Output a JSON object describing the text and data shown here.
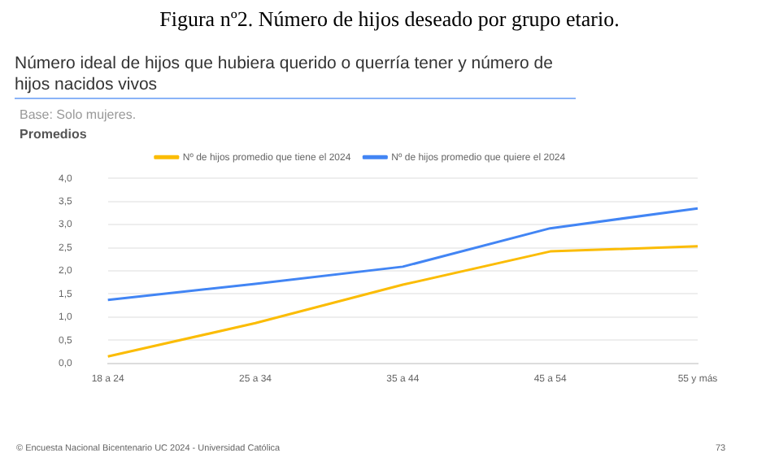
{
  "chart_data": {
    "type": "line",
    "title": "Figura nº2. Número de hijos deseado por grupo etario.",
    "subtitle": "Número ideal de hijos que hubiera querido o querría tener y número de hijos nacidos vivos",
    "ylabel": "Promedios",
    "annotations": [
      "Base: Solo mujeres.",
      "© Encuesta Nacional Bicentenario UC 2024 - Universidad Católica",
      "73"
    ],
    "categories": [
      "18 a 24",
      "25 a 34",
      "35 a 44",
      "45 a 54",
      "55 y más"
    ],
    "series": [
      {
        "name": "Nº de hijos promedio que tiene el 2024",
        "color": "#fbbc04",
        "values": [
          0.15,
          0.87,
          1.7,
          2.42,
          2.53
        ]
      },
      {
        "name": "Nº de hijos promedio que quiere el 2024",
        "color": "#4285f4",
        "values": [
          1.37,
          1.72,
          2.09,
          2.92,
          3.35
        ]
      }
    ],
    "ylim": [
      0,
      4
    ],
    "yticks": [
      {
        "value": 0,
        "label": "0,0"
      },
      {
        "value": 0.5,
        "label": "0,5"
      },
      {
        "value": 1,
        "label": "1,0"
      },
      {
        "value": 1.5,
        "label": "1,5"
      },
      {
        "value": 2,
        "label": "2,0"
      },
      {
        "value": 2.5,
        "label": "2,5"
      },
      {
        "value": 3,
        "label": "3,0"
      },
      {
        "value": 3.5,
        "label": "3,5"
      },
      {
        "value": 4,
        "label": "4,0"
      }
    ],
    "grid": "y",
    "legend": "top",
    "marker": "none",
    "line_style": "solid"
  }
}
